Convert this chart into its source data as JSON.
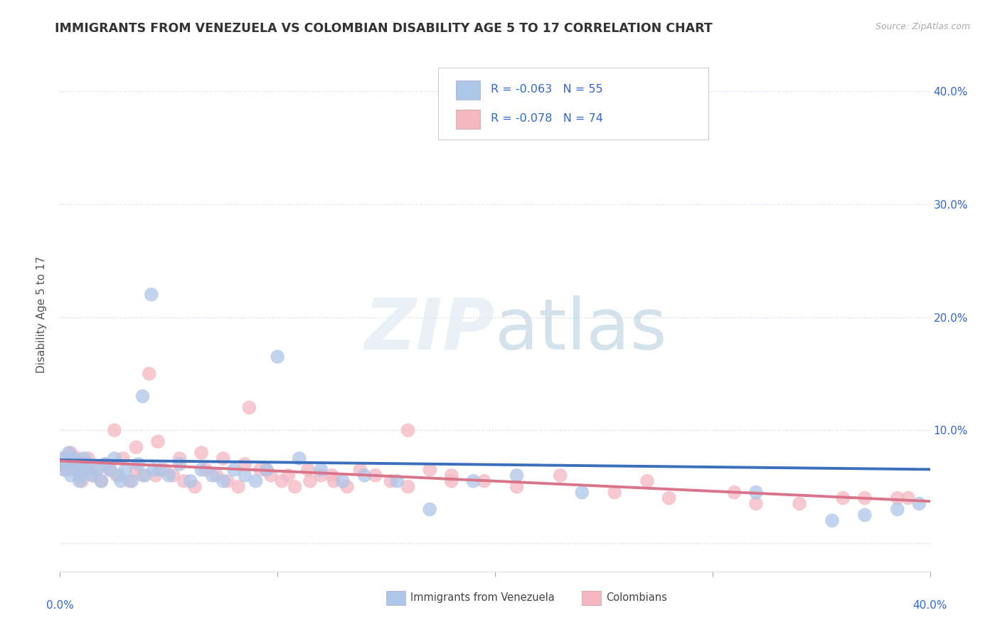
{
  "title": "IMMIGRANTS FROM VENEZUELA VS COLOMBIAN DISABILITY AGE 5 TO 17 CORRELATION CHART",
  "source": "Source: ZipAtlas.com",
  "ylabel": "Disability Age 5 to 17",
  "right_yticks": [
    "",
    "10.0%",
    "20.0%",
    "30.0%",
    "40.0%"
  ],
  "right_ytick_vals": [
    0.0,
    0.1,
    0.2,
    0.3,
    0.4
  ],
  "legend_venezuela": "Immigrants from Venezuela",
  "legend_colombians": "Colombians",
  "r_venezuela": -0.063,
  "n_venezuela": 55,
  "r_colombians": -0.078,
  "n_colombians": 74,
  "color_venezuela": "#aec6e8",
  "color_colombians": "#f4b8c1",
  "line_color_venezuela": "#3a6fbd",
  "line_color_colombians": "#d9748a",
  "background_color": "#ffffff",
  "grid_color": "#c8d8e8",
  "legend_text_color": "#3366cc",
  "xlim": [
    0.0,
    0.4
  ],
  "ylim": [
    -0.025,
    0.43
  ],
  "venezuela_x": [
    0.001,
    0.002,
    0.003,
    0.004,
    0.005,
    0.006,
    0.007,
    0.008,
    0.009,
    0.01,
    0.011,
    0.012,
    0.013,
    0.015,
    0.017,
    0.019,
    0.021,
    0.023,
    0.025,
    0.027,
    0.03,
    0.033,
    0.036,
    0.039,
    0.042,
    0.046,
    0.05,
    0.055,
    0.06,
    0.065,
    0.07,
    0.075,
    0.08,
    0.085,
    0.09,
    0.095,
    0.1,
    0.11,
    0.12,
    0.13,
    0.14,
    0.155,
    0.17,
    0.19,
    0.21,
    0.24,
    0.25,
    0.038,
    0.32,
    0.355,
    0.37,
    0.385,
    0.395,
    0.028,
    0.043
  ],
  "venezuela_y": [
    0.075,
    0.065,
    0.07,
    0.08,
    0.06,
    0.075,
    0.065,
    0.07,
    0.055,
    0.06,
    0.075,
    0.065,
    0.07,
    0.06,
    0.065,
    0.055,
    0.07,
    0.065,
    0.075,
    0.06,
    0.065,
    0.055,
    0.07,
    0.06,
    0.22,
    0.065,
    0.06,
    0.07,
    0.055,
    0.065,
    0.06,
    0.055,
    0.065,
    0.06,
    0.055,
    0.065,
    0.165,
    0.075,
    0.065,
    0.055,
    0.06,
    0.055,
    0.03,
    0.055,
    0.06,
    0.045,
    0.4,
    0.13,
    0.045,
    0.02,
    0.025,
    0.03,
    0.035,
    0.055,
    0.065
  ],
  "colombians_x": [
    0.001,
    0.002,
    0.003,
    0.004,
    0.005,
    0.006,
    0.007,
    0.008,
    0.009,
    0.01,
    0.011,
    0.012,
    0.013,
    0.015,
    0.017,
    0.019,
    0.021,
    0.023,
    0.026,
    0.029,
    0.032,
    0.035,
    0.038,
    0.041,
    0.044,
    0.048,
    0.052,
    0.057,
    0.062,
    0.067,
    0.072,
    0.077,
    0.082,
    0.087,
    0.092,
    0.097,
    0.102,
    0.108,
    0.114,
    0.12,
    0.126,
    0.132,
    0.138,
    0.145,
    0.152,
    0.16,
    0.17,
    0.18,
    0.195,
    0.21,
    0.23,
    0.255,
    0.28,
    0.31,
    0.34,
    0.37,
    0.39,
    0.025,
    0.035,
    0.045,
    0.055,
    0.065,
    0.075,
    0.085,
    0.095,
    0.105,
    0.115,
    0.125,
    0.16,
    0.18,
    0.27,
    0.32,
    0.36,
    0.385
  ],
  "colombians_y": [
    0.07,
    0.065,
    0.075,
    0.065,
    0.08,
    0.07,
    0.065,
    0.075,
    0.065,
    0.055,
    0.07,
    0.065,
    0.075,
    0.06,
    0.065,
    0.055,
    0.07,
    0.065,
    0.06,
    0.075,
    0.055,
    0.065,
    0.06,
    0.15,
    0.06,
    0.065,
    0.06,
    0.055,
    0.05,
    0.065,
    0.06,
    0.055,
    0.05,
    0.12,
    0.065,
    0.06,
    0.055,
    0.05,
    0.065,
    0.06,
    0.055,
    0.05,
    0.065,
    0.06,
    0.055,
    0.05,
    0.065,
    0.06,
    0.055,
    0.05,
    0.06,
    0.045,
    0.04,
    0.045,
    0.035,
    0.04,
    0.04,
    0.1,
    0.085,
    0.09,
    0.075,
    0.08,
    0.075,
    0.07,
    0.065,
    0.06,
    0.055,
    0.06,
    0.1,
    0.055,
    0.055,
    0.035,
    0.04,
    0.04
  ]
}
